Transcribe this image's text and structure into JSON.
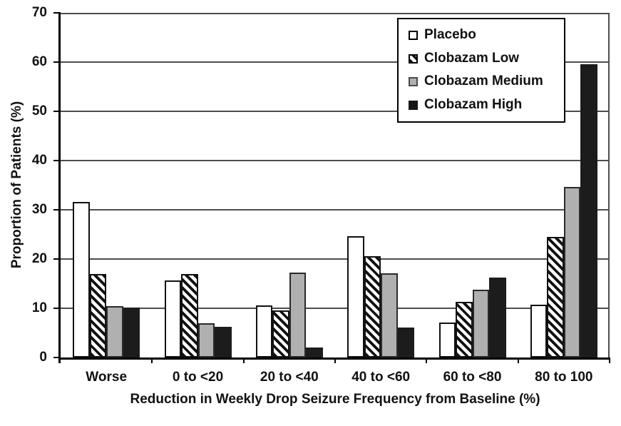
{
  "chart_data": {
    "type": "bar",
    "title": "",
    "xlabel": "Reduction in Weekly Drop Seizure Frequency from Baseline (%)",
    "ylabel": "Proportion of Patients (%)",
    "ylim": [
      0,
      70
    ],
    "yticks": [
      0,
      10,
      20,
      30,
      40,
      50,
      60,
      70
    ],
    "grid": "horizontal",
    "legend_position": "top-right-inside",
    "categories": [
      "Worse",
      "0 to <20",
      "20 to <40",
      "40 to <60",
      "60 to <80",
      "80 to 100"
    ],
    "series": [
      {
        "name": "Placebo",
        "style": "white",
        "values": [
          31.6,
          15.7,
          10.6,
          24.6,
          7.1,
          10.7
        ]
      },
      {
        "name": "Clobazam Low",
        "style": "hatched",
        "values": [
          17.0,
          17.0,
          9.6,
          20.6,
          11.3,
          24.5
        ]
      },
      {
        "name": "Clobazam Medium",
        "style": "gray",
        "values": [
          10.4,
          7.0,
          17.2,
          17.1,
          13.8,
          34.6
        ]
      },
      {
        "name": "Clobazam High",
        "style": "black",
        "values": [
          10.2,
          6.2,
          2.0,
          6.1,
          16.3,
          59.6
        ]
      }
    ],
    "colors": {
      "placebo_fill": "#ffffff",
      "low_hatch": "#111111",
      "medium_fill": "#b0b0b0",
      "high_fill": "#1c1c1c",
      "bar_border": "#111111",
      "gridline": "#4d4d4d",
      "axis": "#000000",
      "background": "#ffffff"
    }
  }
}
